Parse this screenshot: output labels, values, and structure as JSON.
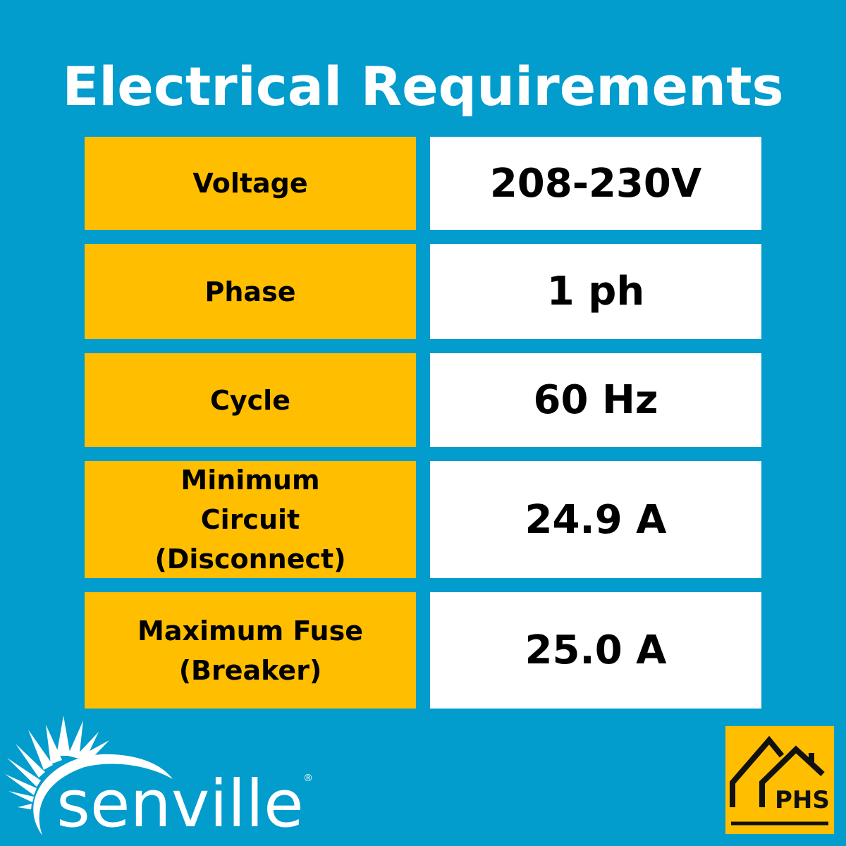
{
  "title": "Electrical Requirements",
  "rows": [
    {
      "label": "Voltage",
      "value": "208-230V"
    },
    {
      "label": "Phase",
      "value": "1 ph"
    },
    {
      "label": "Cycle",
      "value": "60 Hz"
    },
    {
      "label": "Minimum Circuit (Disconnect)",
      "value": "24.9 A"
    },
    {
      "label": "Maximum Fuse (Breaker)",
      "value": "25.0 A"
    }
  ],
  "logos": {
    "brand": "senville",
    "registered": "®",
    "badge": "PHS"
  },
  "colors": {
    "background": "#029ccd",
    "label_fill": "#ffbe00",
    "value_fill": "#ffffff"
  }
}
